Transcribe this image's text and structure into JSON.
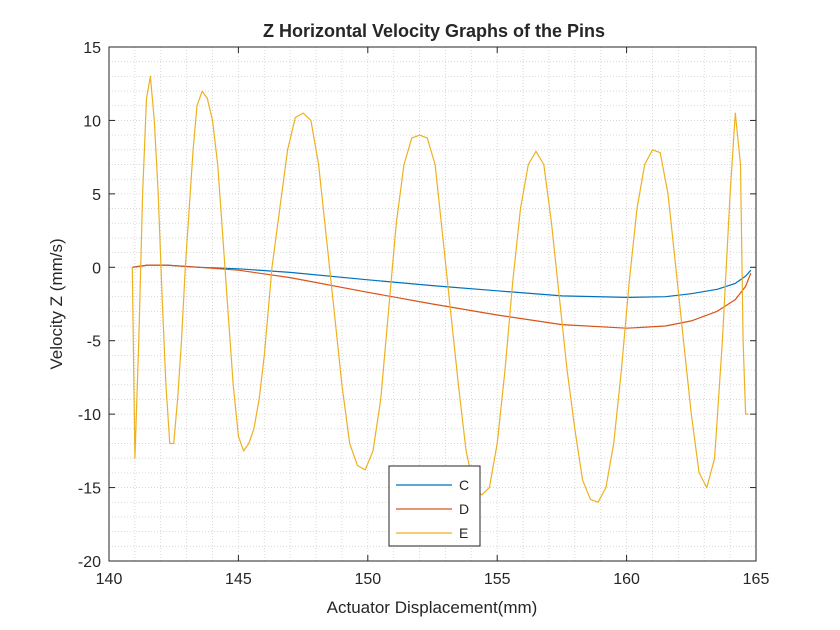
{
  "chart_data": {
    "type": "line",
    "title": "Z Horizontal Velocity Graphs of the Pins",
    "xlabel": "Actuator Displacement(mm)",
    "ylabel": "Velocity Z (mm/s)",
    "xlim": [
      140,
      165
    ],
    "ylim": [
      -20,
      15
    ],
    "xticks": [
      140,
      145,
      150,
      155,
      160,
      165
    ],
    "yticks": [
      -20,
      -15,
      -10,
      -5,
      0,
      5,
      10,
      15
    ],
    "grid": "minor dotted",
    "legend_placement": "bottom-center",
    "series": [
      {
        "name": "C",
        "color": "#0072BD",
        "x": [
          140.9,
          141.5,
          142.2,
          143.5,
          145.0,
          147.0,
          150.0,
          152.5,
          155.0,
          157.5,
          160.0,
          161.5,
          162.5,
          163.5,
          164.2,
          164.6,
          164.8
        ],
        "y": [
          0.0,
          0.15,
          0.15,
          0.0,
          -0.1,
          -0.35,
          -0.85,
          -1.25,
          -1.6,
          -1.95,
          -2.05,
          -2.0,
          -1.8,
          -1.5,
          -1.1,
          -0.6,
          -0.2
        ]
      },
      {
        "name": "D",
        "color": "#D95319",
        "x": [
          140.9,
          141.5,
          142.2,
          143.5,
          145.0,
          147.0,
          150.0,
          152.5,
          155.0,
          157.5,
          160.0,
          161.5,
          162.5,
          163.5,
          164.2,
          164.6,
          164.8
        ],
        "y": [
          0.0,
          0.15,
          0.15,
          0.0,
          -0.2,
          -0.7,
          -1.7,
          -2.5,
          -3.25,
          -3.9,
          -4.15,
          -4.0,
          -3.65,
          -3.0,
          -2.2,
          -1.3,
          -0.4
        ]
      },
      {
        "name": "E",
        "color": "#EDB120",
        "x": [
          140.9,
          141.0,
          141.15,
          141.3,
          141.45,
          141.6,
          141.75,
          141.9,
          142.05,
          142.2,
          142.35,
          142.5,
          142.65,
          142.8,
          142.95,
          143.1,
          143.25,
          143.4,
          143.6,
          143.8,
          144.0,
          144.2,
          144.4,
          144.6,
          144.8,
          145.0,
          145.2,
          145.4,
          145.6,
          145.8,
          146.0,
          146.3,
          146.6,
          146.9,
          147.2,
          147.5,
          147.8,
          148.1,
          148.4,
          148.7,
          149.0,
          149.3,
          149.6,
          149.9,
          150.2,
          150.5,
          150.8,
          151.1,
          151.4,
          151.7,
          152.0,
          152.3,
          152.6,
          152.9,
          153.2,
          153.5,
          153.8,
          154.1,
          154.4,
          154.7,
          155.0,
          155.3,
          155.6,
          155.9,
          156.2,
          156.5,
          156.8,
          157.1,
          157.4,
          157.7,
          158.0,
          158.3,
          158.6,
          158.9,
          159.2,
          159.5,
          159.8,
          160.1,
          160.4,
          160.7,
          161.0,
          161.3,
          161.6,
          161.9,
          162.2,
          162.5,
          162.8,
          163.1,
          163.4,
          163.7,
          164.0,
          164.2,
          164.4,
          164.5,
          164.6,
          164.7
        ],
        "y": [
          0.0,
          -13.0,
          -5.0,
          5.0,
          11.5,
          13.0,
          10.0,
          5.0,
          -2.0,
          -8.0,
          -12.0,
          -12.0,
          -9.0,
          -5.0,
          0.0,
          4.0,
          8.0,
          11.0,
          12.0,
          11.5,
          10.0,
          7.0,
          2.0,
          -3.0,
          -8.0,
          -11.5,
          -12.5,
          -12.0,
          -11.0,
          -9.0,
          -6.0,
          0.0,
          4.0,
          8.0,
          10.2,
          10.5,
          10.0,
          7.0,
          2.0,
          -3.0,
          -8.0,
          -12.0,
          -13.5,
          -13.8,
          -12.5,
          -9.0,
          -3.0,
          3.0,
          7.0,
          8.8,
          9.0,
          8.8,
          7.0,
          2.0,
          -3.0,
          -8.0,
          -12.5,
          -15.0,
          -15.5,
          -15.0,
          -12.0,
          -7.0,
          -1.0,
          4.0,
          7.0,
          7.9,
          7.0,
          3.0,
          -2.0,
          -7.0,
          -11.0,
          -14.5,
          -15.8,
          -16.0,
          -15.0,
          -12.0,
          -7.0,
          -1.0,
          4.0,
          7.0,
          8.0,
          7.8,
          5.0,
          0.0,
          -5.0,
          -10.0,
          -14.0,
          -15.0,
          -13.0,
          -5.0,
          5.0,
          10.5,
          7.0,
          -5.0,
          -10.0,
          -10.0
        ]
      }
    ]
  }
}
